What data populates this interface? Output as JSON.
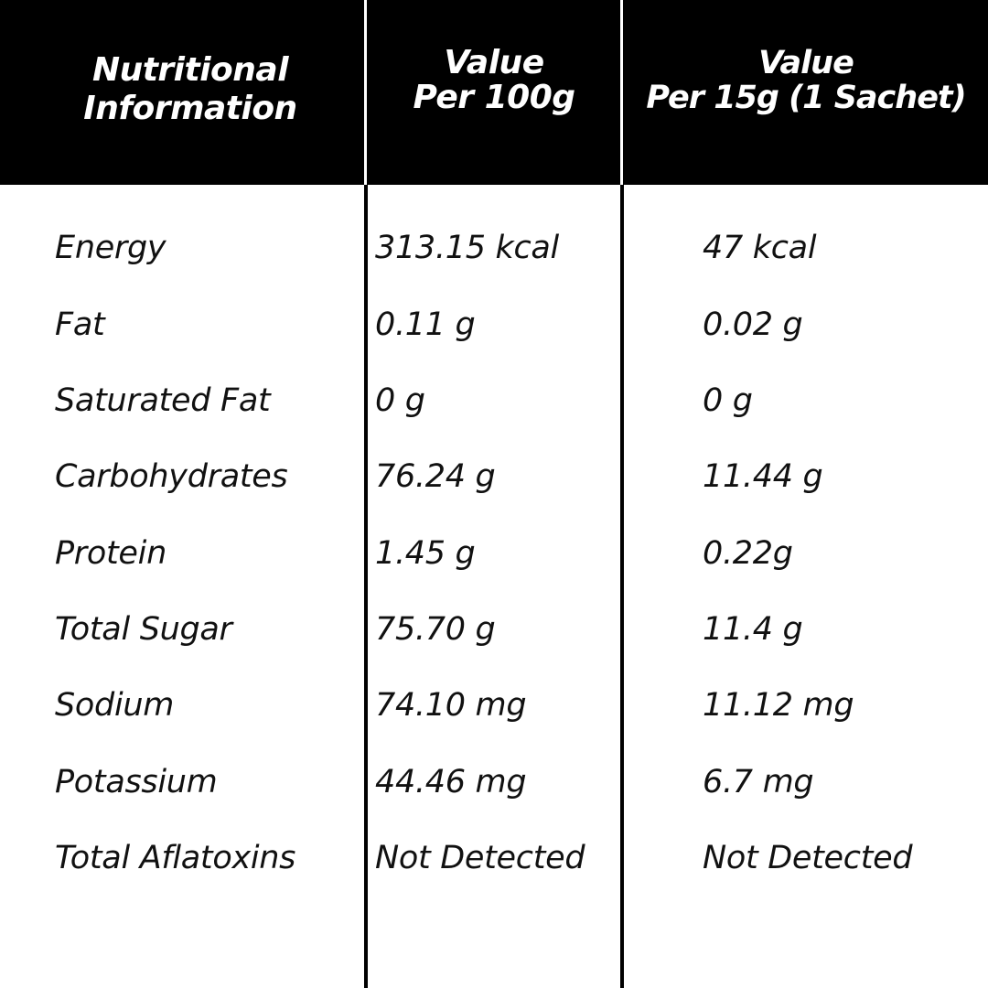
{
  "colors": {
    "header_background": "#000000",
    "header_text": "#ffffff",
    "body_background": "#ffffff",
    "body_text": "#111111",
    "rule": "#000000"
  },
  "headers": [
    "Nutritional\nInformation",
    "Value\nPer 100g",
    "Value\nPer 15g (1 Sachet)"
  ],
  "rows": [
    {
      "nutrient": "Energy",
      "per_100g": "313.15 kcal",
      "per_sachet": "47 kcal"
    },
    {
      "nutrient": "Fat",
      "per_100g": "0.11 g",
      "per_sachet": "0.02 g"
    },
    {
      "nutrient": "Saturated Fat",
      "per_100g": "0 g",
      "per_sachet": "0 g"
    },
    {
      "nutrient": "Carbohydrates",
      "per_100g": "76.24 g",
      "per_sachet": "11.44 g"
    },
    {
      "nutrient": "Protein",
      "per_100g": "1.45 g",
      "per_sachet": "0.22g"
    },
    {
      "nutrient": "Total Sugar",
      "per_100g": "75.70 g",
      "per_sachet": "11.4 g"
    },
    {
      "nutrient": "Sodium",
      "per_100g": "74.10 mg",
      "per_sachet": "11.12 mg"
    },
    {
      "nutrient": "Potassium",
      "per_100g": "44.46 mg",
      "per_sachet": "6.7 mg"
    },
    {
      "nutrient": "Total Aflatoxins",
      "per_100g": "Not Detected",
      "per_sachet": "Not Detected"
    }
  ]
}
